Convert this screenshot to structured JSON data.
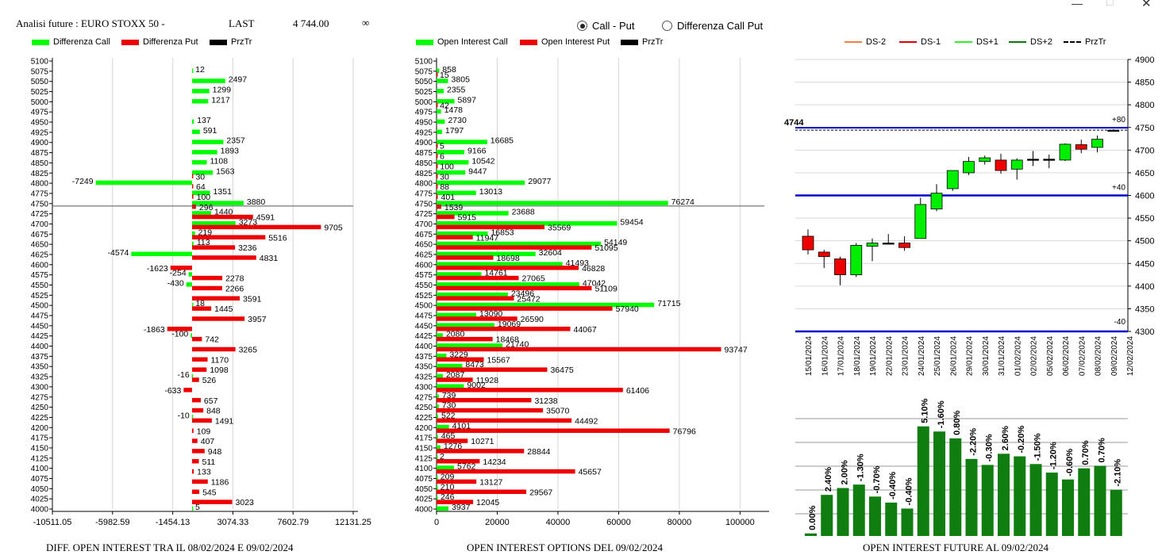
{
  "window": {
    "minimize": "—",
    "maximize": "□",
    "close": "✕"
  },
  "header": {
    "title": "Analisi future : EURO STOXX 50 -",
    "last_label": "LAST",
    "last_value": "4 744.00",
    "infinity": "∞"
  },
  "radios": {
    "call_put": "Call - Put",
    "diff_call_put": "Differenza Call Put",
    "selected": "call_put"
  },
  "colors": {
    "green": "#00ff00",
    "red": "#ee0000",
    "black": "#000000",
    "dark_green": "#0f7d0f",
    "blue": "#0000cc"
  },
  "left": {
    "legend": [
      "Differenza Call",
      "Differenza Put",
      "PrzTr"
    ],
    "footer": "DIFF. OPEN INTEREST TRA IL 08/02/2024 E 09/02/2024"
  },
  "middle": {
    "legend": [
      "Open Interest Call",
      "Open Interest Put",
      "PrzTr"
    ],
    "footer": "OPEN INTEREST OPTIONS DEL 09/02/2024"
  },
  "right": {
    "legend": [
      "DS-2",
      "DS-1",
      "DS+1",
      "DS+2",
      "PrzTr"
    ],
    "footer": "OPEN INTEREST FUTURE AL 09/02/2024",
    "price_label": "4744",
    "band_labels": [
      "+80",
      "+40",
      "-40"
    ]
  },
  "chart_data": [
    {
      "type": "bar",
      "title": "DIFF. OPEN INTEREST TRA IL 08/02/2024 E 09/02/2024",
      "orientation": "horizontal",
      "categories": [
        "5100",
        "5075",
        "5050",
        "5025",
        "5000",
        "4975",
        "4950",
        "4925",
        "4900",
        "4875",
        "4850",
        "4825",
        "4800",
        "4775",
        "4750",
        "4725",
        "4700",
        "4675",
        "4650",
        "4625",
        "4600",
        "4575",
        "4550",
        "4525",
        "4500",
        "4475",
        "4450",
        "4425",
        "4400",
        "4375",
        "4350",
        "4325",
        "4300",
        "4275",
        "4250",
        "4225",
        "4200",
        "4175",
        "4150",
        "4125",
        "4100",
        "4075",
        "4050",
        "4025",
        "4000"
      ],
      "series": [
        {
          "name": "Differenza Call",
          "values": [
            null,
            12,
            2497,
            1299,
            1217,
            null,
            137,
            591,
            2357,
            1893,
            1108,
            1563,
            -7249,
            1351,
            3880,
            1440,
            3273,
            219,
            113,
            -4574,
            null,
            -254,
            -430,
            null,
            18,
            null,
            null,
            -100,
            null,
            null,
            null,
            -16,
            null,
            null,
            null,
            -10,
            null,
            null,
            null,
            null,
            null,
            null,
            null,
            null,
            5
          ]
        },
        {
          "name": "Differenza Put",
          "values": [
            null,
            null,
            null,
            null,
            null,
            null,
            null,
            null,
            null,
            null,
            null,
            30,
            64,
            100,
            296,
            4591,
            9705,
            5516,
            3236,
            4831,
            -1623,
            2278,
            2266,
            3591,
            1445,
            3957,
            -1863,
            742,
            3265,
            1170,
            1098,
            526,
            -633,
            657,
            848,
            1491,
            109,
            407,
            948,
            511,
            133,
            1186,
            545,
            3023,
            null
          ]
        }
      ],
      "przTr": 4744,
      "xticks": [
        "-10511.05",
        "-5982.59",
        "-1454.13",
        "3074.33",
        "7602.79",
        "12131.25"
      ],
      "xlim": [
        -10511.05,
        12131.25
      ]
    },
    {
      "type": "bar",
      "title": "OPEN INTEREST OPTIONS DEL 09/02/2024",
      "orientation": "horizontal",
      "categories": [
        "5100",
        "5075",
        "5050",
        "5025",
        "5000",
        "4975",
        "4950",
        "4925",
        "4900",
        "4875",
        "4850",
        "4825",
        "4800",
        "4775",
        "4750",
        "4725",
        "4700",
        "4675",
        "4650",
        "4625",
        "4600",
        "4575",
        "4550",
        "4525",
        "4500",
        "4475",
        "4450",
        "4425",
        "4400",
        "4375",
        "4350",
        "4325",
        "4300",
        "4275",
        "4250",
        "4225",
        "4200",
        "4175",
        "4150",
        "4125",
        "4100",
        "4075",
        "4050",
        "4025",
        "4000"
      ],
      "series": [
        {
          "name": "Open Interest Call",
          "values": [
            null,
            858,
            3805,
            2355,
            5897,
            1478,
            2730,
            1797,
            16685,
            9166,
            10542,
            9447,
            29077,
            13013,
            76274,
            23688,
            59454,
            16853,
            54149,
            32604,
            41493,
            14761,
            47042,
            23496,
            71715,
            13090,
            19069,
            2080,
            21740,
            3229,
            8473,
            2087,
            9002,
            739,
            730,
            522,
            4101,
            465,
            1276,
            2,
            5762,
            209,
            210,
            246,
            3937
          ]
        },
        {
          "name": "Open Interest Put",
          "values": [
            null,
            15,
            null,
            null,
            42,
            null,
            null,
            null,
            5,
            6,
            100,
            30,
            88,
            401,
            1539,
            5915,
            35569,
            11947,
            51095,
            18698,
            46828,
            27065,
            51109,
            25472,
            57940,
            26590,
            44067,
            18468,
            93747,
            15567,
            36475,
            11928,
            61406,
            31238,
            35070,
            44492,
            76796,
            10271,
            28844,
            14234,
            45657,
            13127,
            29567,
            12045,
            null
          ]
        }
      ],
      "przTr": 4744,
      "xticks": [
        "0",
        "20000",
        "40000",
        "60000",
        "80000",
        "100000"
      ],
      "xlim": [
        0,
        108000
      ]
    },
    {
      "type": "candlestick",
      "title": "",
      "dates": [
        "15/01/2024",
        "16/01/2024",
        "17/01/2024",
        "18/01/2024",
        "19/01/2024",
        "22/01/2024",
        "23/01/2024",
        "24/01/2024",
        "25/01/2024",
        "26/01/2024",
        "29/01/2024",
        "30/01/2024",
        "31/01/2024",
        "01/02/2024",
        "02/02/2024",
        "05/02/2024",
        "06/02/2024",
        "07/02/2024",
        "08/02/2024",
        "09/02/2024",
        "12/02/2024"
      ],
      "candles": [
        {
          "o": 4510,
          "h": 4525,
          "l": 4470,
          "c": 4480
        },
        {
          "o": 4475,
          "h": 4480,
          "l": 4440,
          "c": 4465
        },
        {
          "o": 4460,
          "h": 4465,
          "l": 4402,
          "c": 4425
        },
        {
          "o": 4425,
          "h": 4495,
          "l": 4420,
          "c": 4490
        },
        {
          "o": 4488,
          "h": 4505,
          "l": 4455,
          "c": 4495
        },
        {
          "o": 4495,
          "h": 4515,
          "l": 4495,
          "c": 4495
        },
        {
          "o": 4495,
          "h": 4510,
          "l": 4478,
          "c": 4485
        },
        {
          "o": 4505,
          "h": 4595,
          "l": 4505,
          "c": 4580
        },
        {
          "o": 4570,
          "h": 4625,
          "l": 4565,
          "c": 4605
        },
        {
          "o": 4615,
          "h": 4655,
          "l": 4610,
          "c": 4655
        },
        {
          "o": 4650,
          "h": 4685,
          "l": 4645,
          "c": 4675
        },
        {
          "o": 4675,
          "h": 4688,
          "l": 4668,
          "c": 4683
        },
        {
          "o": 4678,
          "h": 4692,
          "l": 4648,
          "c": 4655
        },
        {
          "o": 4658,
          "h": 4682,
          "l": 4635,
          "c": 4678
        },
        {
          "o": 4680,
          "h": 4698,
          "l": 4665,
          "c": 4680
        },
        {
          "o": 4680,
          "h": 4690,
          "l": 4660,
          "c": 4680
        },
        {
          "o": 4678,
          "h": 4715,
          "l": 4676,
          "c": 4713
        },
        {
          "o": 4712,
          "h": 4723,
          "l": 4693,
          "c": 4702
        },
        {
          "o": 4706,
          "h": 4732,
          "l": 4695,
          "c": 4724
        },
        {
          "o": 4744,
          "h": 4746,
          "l": 4742,
          "c": 4744
        }
      ],
      "yticks": [
        "4300",
        "4350",
        "4400",
        "4450",
        "4500",
        "4550",
        "4600",
        "4650",
        "4700",
        "4750",
        "4800",
        "4850",
        "4900"
      ],
      "ylim": [
        4300,
        4900
      ],
      "horizontal_lines": [
        4744,
        4600,
        4300
      ],
      "przTr": 4744
    },
    {
      "type": "bar",
      "title": "OPEN INTEREST FUTURE AL 09/02/2024",
      "labels": [
        "0.00%",
        "2.40%",
        "2.00%",
        "-1.30%",
        "-0.70%",
        "-0.40%",
        "-0.40%",
        "5.10%",
        "-1.60%",
        "0.80%",
        "-2.20%",
        "-0.30%",
        "2.60%",
        "-0.20%",
        "-1.50%",
        "-1.20%",
        "-0.60%",
        "0.70%",
        "0.70%",
        "-2.10%"
      ],
      "values": [
        3,
        48,
        56,
        60,
        46,
        39,
        32,
        128,
        122,
        114,
        90,
        83,
        96,
        93,
        84,
        74,
        66,
        79,
        82,
        54
      ]
    }
  ]
}
